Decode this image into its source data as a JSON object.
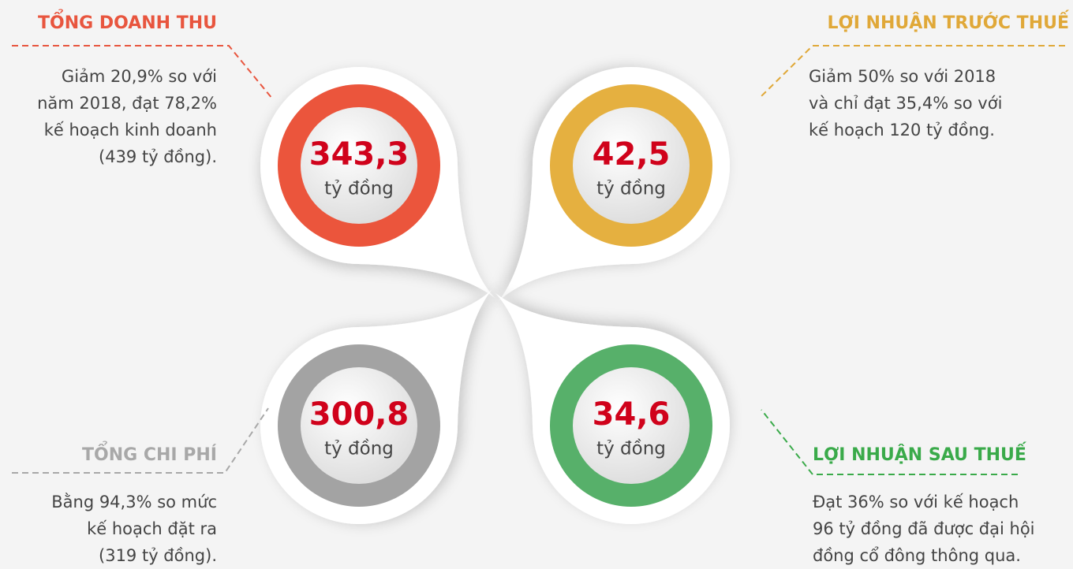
{
  "items": [
    {
      "title": "TỔNG DOANH THU",
      "value": "343,3",
      "unit": "tỷ đồng",
      "color": "#eb553c",
      "title_color": "#e8553e",
      "description": [
        "Giảm 20,9% so với",
        "năm 2018, đạt 78,2%",
        "kế hoạch kinh doanh",
        "(439 tỷ đồng)."
      ]
    },
    {
      "title": "LỢI NHUẬN TRƯỚC THUẾ",
      "value": "42,5",
      "unit": "tỷ đồng",
      "color": "#e5b040",
      "title_color": "#e0a838",
      "description": [
        "Giảm 50% so với 2018",
        "và chỉ đạt 35,4% so với",
        "kế hoạch 120 tỷ đồng."
      ]
    },
    {
      "title": "TỔNG CHI PHÍ",
      "value": "300,8",
      "unit": "tỷ đồng",
      "color": "#a3a3a3",
      "title_color": "#a8a8a8",
      "description": [
        "Bằng 94,3% so mức",
        "kế hoạch đặt ra",
        "(319 tỷ đồng)."
      ]
    },
    {
      "title": "LỢI NHUẬN SAU THUẾ",
      "value": "34,6",
      "unit": "tỷ đồng",
      "color": "#57b06a",
      "title_color": "#3aaa4a",
      "description": [
        "Đạt 36% so với kế hoạch",
        "96 tỷ đồng đã được đại hội",
        "đồng cổ đông thông qua."
      ]
    }
  ]
}
